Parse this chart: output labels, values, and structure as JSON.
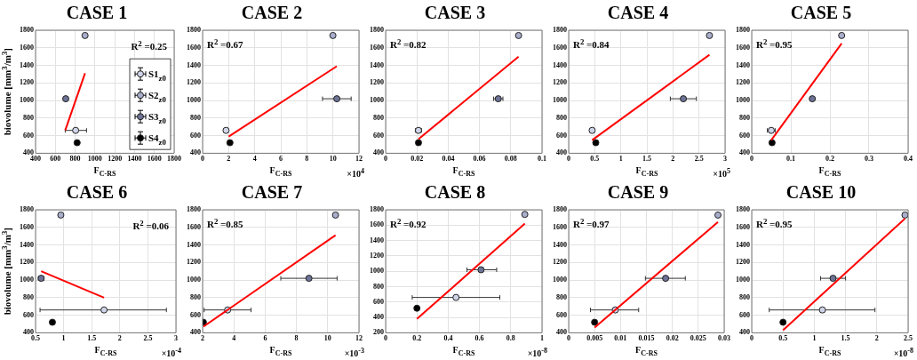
{
  "chart_data": [
    {
      "type": "scatter",
      "title": "CASE 1",
      "xlabel": "F$_{C-RS}$",
      "ylabel": "biovolume [mm$^{3}$/m$^{3}$]",
      "xlim": [
        400,
        1800
      ],
      "xticks": [
        400,
        600,
        800,
        1000,
        1200,
        1400,
        1600,
        1800
      ],
      "ylim": [
        400,
        1800
      ],
      "yticks": [
        400,
        600,
        800,
        1000,
        1200,
        1400,
        1600,
        1800
      ],
      "grid": true,
      "marker": "circle",
      "legend": "right",
      "annotations": [
        "R$^{2}$ =0.25"
      ],
      "series": [
        {
          "name": "S1$_{z0}$",
          "color": "#d0d4e8",
          "x": [
            805
          ],
          "values": [
            660
          ],
          "xerrors": [
            [
              700,
              915
            ]
          ]
        },
        {
          "name": "S2$_{z0}$",
          "color": "#a9aecb",
          "x": [
            900
          ],
          "values": [
            1740
          ]
        },
        {
          "name": "S3$_{z0}$",
          "color": "#6d7396",
          "x": [
            705
          ],
          "values": [
            1020
          ]
        },
        {
          "name": "S4$_{z0}$",
          "color": "#000000",
          "x": [
            820
          ],
          "values": [
            520
          ]
        },
        {
          "type": "line",
          "marker": "none",
          "color": "#ff0000",
          "x": [
            700,
            900
          ],
          "values": [
            660,
            1310
          ]
        }
      ]
    },
    {
      "type": "scatter",
      "title": "CASE 2",
      "xlabel": "F$_{C-RS}$",
      "xlim": [
        0,
        12
      ],
      "xticks": [
        0,
        2,
        4,
        6,
        8,
        10,
        12
      ],
      "ylim": [
        400,
        1800
      ],
      "yticks": [
        400,
        600,
        800,
        1000,
        1200,
        1400,
        1600,
        1800
      ],
      "grid": true,
      "marker": "circle",
      "annotations": [
        "R$^{2}$ =0.67",
        "×10$^{4}$"
      ],
      "series": [
        {
          "color": "#d0d4e8",
          "x": [
            1.8
          ],
          "values": [
            660
          ]
        },
        {
          "color": "#a9aecb",
          "x": [
            10
          ],
          "values": [
            1740
          ]
        },
        {
          "color": "#6d7396",
          "x": [
            10.3
          ],
          "values": [
            1020
          ],
          "xerrors": [
            [
              9.2,
              11.4
            ]
          ]
        },
        {
          "color": "#000000",
          "x": [
            2.1
          ],
          "values": [
            520
          ]
        },
        {
          "type": "line",
          "marker": "none",
          "color": "#ff0000",
          "x": [
            2,
            10.3
          ],
          "values": [
            590,
            1390
          ]
        }
      ]
    },
    {
      "type": "scatter",
      "title": "CASE 3",
      "xlabel": "F$_{C-RS}$",
      "xlim": [
        0,
        0.1
      ],
      "xticks": [
        0,
        0.02,
        0.04,
        0.06,
        0.08,
        0.1
      ],
      "ylim": [
        400,
        1800
      ],
      "yticks": [
        400,
        600,
        800,
        1000,
        1200,
        1400,
        1600,
        1800
      ],
      "grid": true,
      "marker": "circle",
      "annotations": [
        "R$^{2}$ =0.82"
      ],
      "series": [
        {
          "color": "#d0d4e8",
          "x": [
            0.021
          ],
          "values": [
            660
          ],
          "xerrors": [
            [
              0.019,
              0.023
            ]
          ]
        },
        {
          "color": "#a9aecb",
          "x": [
            0.085
          ],
          "values": [
            1740
          ]
        },
        {
          "color": "#6d7396",
          "x": [
            0.072
          ],
          "values": [
            1020
          ],
          "xerrors": [
            [
              0.069,
              0.075
            ]
          ]
        },
        {
          "color": "#000000",
          "x": [
            0.021
          ],
          "values": [
            520
          ]
        },
        {
          "type": "line",
          "marker": "none",
          "color": "#ff0000",
          "x": [
            0.021,
            0.085
          ],
          "values": [
            560,
            1500
          ]
        }
      ]
    },
    {
      "type": "scatter",
      "title": "CASE 4",
      "xlabel": "F$_{C-RS}$",
      "xlim": [
        0,
        3
      ],
      "xticks": [
        0,
        0.5,
        1,
        1.5,
        2,
        2.5,
        3
      ],
      "ylim": [
        400,
        1800
      ],
      "yticks": [
        400,
        600,
        800,
        1000,
        1200,
        1400,
        1600,
        1800
      ],
      "grid": true,
      "marker": "circle",
      "annotations": [
        "R$^{2}$ =0.84",
        "×10$^{5}$"
      ],
      "series": [
        {
          "color": "#d0d4e8",
          "x": [
            0.45
          ],
          "values": [
            660
          ]
        },
        {
          "color": "#a9aecb",
          "x": [
            2.7
          ],
          "values": [
            1740
          ]
        },
        {
          "color": "#6d7396",
          "x": [
            2.2
          ],
          "values": [
            1020
          ],
          "xerrors": [
            [
              1.95,
              2.45
            ]
          ]
        },
        {
          "color": "#000000",
          "x": [
            0.52
          ],
          "values": [
            520
          ]
        },
        {
          "type": "line",
          "marker": "none",
          "color": "#ff0000",
          "x": [
            0.45,
            2.7
          ],
          "values": [
            550,
            1520
          ]
        }
      ]
    },
    {
      "type": "scatter",
      "title": "CASE 5",
      "xlabel": "F$_{C-RS}$",
      "xlim": [
        0,
        0.4
      ],
      "xticks": [
        0,
        0.1,
        0.2,
        0.3,
        0.4
      ],
      "ylim": [
        400,
        1800
      ],
      "yticks": [
        400,
        600,
        800,
        1000,
        1200,
        1400,
        1600,
        1800
      ],
      "grid": true,
      "marker": "circle",
      "annotations": [
        "R$^{2}$ =0.95"
      ],
      "series": [
        {
          "color": "#d0d4e8",
          "x": [
            0.05
          ],
          "values": [
            660
          ],
          "xerrors": [
            [
              0.04,
              0.06
            ]
          ]
        },
        {
          "color": "#a9aecb",
          "x": [
            0.23
          ],
          "values": [
            1740
          ]
        },
        {
          "color": "#6d7396",
          "x": [
            0.155
          ],
          "values": [
            1020
          ]
        },
        {
          "color": "#000000",
          "x": [
            0.052
          ],
          "values": [
            520
          ]
        },
        {
          "type": "line",
          "marker": "none",
          "color": "#ff0000",
          "x": [
            0.05,
            0.23
          ],
          "values": [
            550,
            1650
          ]
        }
      ]
    },
    {
      "type": "scatter",
      "title": "CASE 6",
      "xlabel": "F$_{C-RS}$",
      "ylabel": "biovolume [mm$^{3}$/m$^{3}$]",
      "xlim": [
        0.5,
        3
      ],
      "xticks": [
        0.5,
        1,
        1.5,
        2,
        2.5,
        3
      ],
      "ylim": [
        400,
        1800
      ],
      "yticks": [
        400,
        600,
        800,
        1000,
        1200,
        1400,
        1600,
        1800
      ],
      "grid": true,
      "marker": "circle",
      "annotations": [
        "R$^{2}$ =0.06",
        "×10$^{-4}$"
      ],
      "series": [
        {
          "color": "#d0d4e8",
          "x": [
            1.72
          ],
          "values": [
            660
          ],
          "xerrors": [
            [
              0.58,
              2.83
            ]
          ]
        },
        {
          "color": "#a9aecb",
          "x": [
            0.95
          ],
          "values": [
            1740
          ]
        },
        {
          "color": "#6d7396",
          "x": [
            0.6
          ],
          "values": [
            1020
          ],
          "xerrors": [
            [
              0.55,
              0.65
            ]
          ]
        },
        {
          "color": "#000000",
          "x": [
            0.8
          ],
          "values": [
            520
          ]
        },
        {
          "type": "line",
          "marker": "none",
          "color": "#ff0000",
          "x": [
            0.6,
            1.72
          ],
          "values": [
            1100,
            800
          ]
        }
      ]
    },
    {
      "type": "scatter",
      "title": "CASE 7",
      "xlabel": "F$_{C-RS}$",
      "xlim": [
        2,
        12
      ],
      "xticks": [
        2,
        4,
        6,
        8,
        10,
        12
      ],
      "ylim": [
        400,
        1800
      ],
      "yticks": [
        400,
        600,
        800,
        1000,
        1200,
        1400,
        1600,
        1800
      ],
      "grid": true,
      "marker": "circle",
      "annotations": [
        "R$^{2}$ =0.85",
        "×10$^{-3}$"
      ],
      "series": [
        {
          "color": "#d0d4e8",
          "x": [
            3.6
          ],
          "values": [
            660
          ],
          "xerrors": [
            [
              2.1,
              5.1
            ]
          ]
        },
        {
          "color": "#a9aecb",
          "x": [
            10.5
          ],
          "values": [
            1740
          ]
        },
        {
          "color": "#6d7396",
          "x": [
            8.8
          ],
          "values": [
            1020
          ],
          "xerrors": [
            [
              7,
              10.6
            ]
          ]
        },
        {
          "color": "#000000",
          "x": [
            2.05
          ],
          "values": [
            520
          ]
        },
        {
          "type": "line",
          "marker": "none",
          "color": "#ff0000",
          "x": [
            2.05,
            10.5
          ],
          "values": [
            470,
            1510
          ]
        }
      ]
    },
    {
      "type": "scatter",
      "title": "CASE 8",
      "xlabel": "F$_{C-RS}$",
      "xlim": [
        0,
        1
      ],
      "xticks": [
        0,
        0.2,
        0.4,
        0.6,
        0.8,
        1
      ],
      "ylim": [
        200,
        1800
      ],
      "yticks": [
        200,
        400,
        600,
        800,
        1000,
        1200,
        1400,
        1600,
        1800
      ],
      "grid": true,
      "marker": "circle",
      "annotations": [
        "R$^{2}$ =0.92",
        "×10$^{-8}$"
      ],
      "series": [
        {
          "color": "#d0d4e8",
          "x": [
            0.45
          ],
          "values": [
            660
          ],
          "xerrors": [
            [
              0.17,
              0.73
            ]
          ]
        },
        {
          "color": "#a9aecb",
          "x": [
            0.89
          ],
          "values": [
            1740
          ]
        },
        {
          "color": "#6d7396",
          "x": [
            0.61
          ],
          "values": [
            1020
          ],
          "xerrors": [
            [
              0.52,
              0.71
            ]
          ]
        },
        {
          "color": "#000000",
          "x": [
            0.2
          ],
          "values": [
            520
          ]
        },
        {
          "type": "line",
          "marker": "none",
          "color": "#ff0000",
          "x": [
            0.2,
            0.89
          ],
          "values": [
            380,
            1620
          ]
        }
      ]
    },
    {
      "type": "scatter",
      "title": "CASE 9",
      "xlabel": "F$_{C-RS}$",
      "xlim": [
        0,
        0.03
      ],
      "xticks": [
        0,
        0.005,
        0.01,
        0.015,
        0.02,
        0.025,
        0.03
      ],
      "ylim": [
        400,
        1800
      ],
      "yticks": [
        400,
        600,
        800,
        1000,
        1200,
        1400,
        1600,
        1800
      ],
      "grid": true,
      "marker": "circle",
      "annotations": [
        "R$^{2}$ =0.97"
      ],
      "series": [
        {
          "color": "#d0d4e8",
          "x": [
            0.009
          ],
          "values": [
            660
          ],
          "xerrors": [
            [
              0.0042,
              0.0135
            ]
          ]
        },
        {
          "color": "#a9aecb",
          "x": [
            0.0288
          ],
          "values": [
            1740
          ]
        },
        {
          "color": "#6d7396",
          "x": [
            0.0187
          ],
          "values": [
            1020
          ],
          "xerrors": [
            [
              0.0148,
              0.0225
            ]
          ]
        },
        {
          "color": "#000000",
          "x": [
            0.005
          ],
          "values": [
            520
          ]
        },
        {
          "type": "line",
          "marker": "none",
          "color": "#ff0000",
          "x": [
            0.005,
            0.0288
          ],
          "values": [
            460,
            1660
          ]
        }
      ]
    },
    {
      "type": "scatter",
      "title": "CASE 10",
      "xlabel": "F$_{C-RS}$",
      "xlim": [
        0,
        2.5
      ],
      "xticks": [
        0,
        0.5,
        1,
        1.5,
        2,
        2.5
      ],
      "ylim": [
        400,
        1800
      ],
      "yticks": [
        400,
        600,
        800,
        1000,
        1200,
        1400,
        1600,
        1800
      ],
      "grid": true,
      "marker": "circle",
      "annotations": [
        "R$^{2}$ =0.95",
        "×10$^{-8}$"
      ],
      "series": [
        {
          "color": "#d0d4e8",
          "x": [
            1.13
          ],
          "values": [
            660
          ],
          "xerrors": [
            [
              0.28,
              1.97
            ]
          ]
        },
        {
          "color": "#a9aecb",
          "x": [
            2.45
          ],
          "values": [
            1740
          ]
        },
        {
          "color": "#6d7396",
          "x": [
            1.3
          ],
          "values": [
            1020
          ],
          "xerrors": [
            [
              1.1,
              1.5
            ]
          ]
        },
        {
          "color": "#000000",
          "x": [
            0.5
          ],
          "values": [
            520
          ]
        },
        {
          "type": "line",
          "marker": "none",
          "color": "#ff0000",
          "x": [
            0.5,
            2.45
          ],
          "values": [
            430,
            1700
          ]
        }
      ]
    }
  ]
}
